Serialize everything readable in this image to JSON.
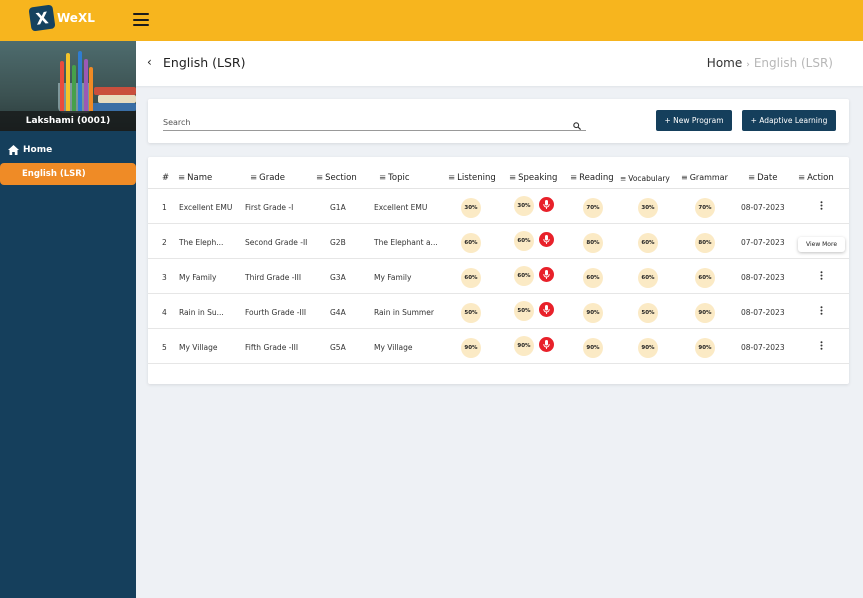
{
  "app": {
    "logo_text": "WeXL",
    "logo_mark": "X",
    "brand_color": "#f7b51e",
    "sidebar_color": "#153f5c",
    "accent_color": "#ef8b26"
  },
  "sidebar": {
    "profile_name": "Lakshami (0001)",
    "home_label": "Home",
    "active_label": "English (LSR)"
  },
  "header": {
    "back_icon": "chevron-left-icon",
    "title": "English (LSR)",
    "breadcrumb_home": "Home",
    "breadcrumb_sep": "›",
    "breadcrumb_current": "English (LSR)"
  },
  "search": {
    "placeholder": "Search",
    "value": ""
  },
  "buttons": {
    "new_program": "+ New Program",
    "adaptive_learning": "+ Adaptive Learning"
  },
  "table": {
    "columns": {
      "num": "#",
      "name": "Name",
      "grade": "Grade",
      "section": "Section",
      "topic": "Topic",
      "listening": "Listening",
      "speaking": "Speaking",
      "reading": "Reading",
      "vocabulary": "Vocabulary",
      "grammar": "Grammar",
      "date": "Date",
      "action": "Action"
    },
    "sort_glyph": "≡",
    "rows": [
      {
        "num": "1",
        "name": "Excellent EMU",
        "grade": "First Grade -I",
        "section": "G1A",
        "topic": "Excellent EMU",
        "listening": "30%",
        "speaking": "30%",
        "reading": "70%",
        "vocabulary": "30%",
        "grammar": "70%",
        "date": "08-07-2023"
      },
      {
        "num": "2",
        "name": "The Eleph...",
        "grade": "Second Grade -II",
        "section": "G2B",
        "topic": "The Elephant a...",
        "listening": "60%",
        "speaking": "60%",
        "reading": "80%",
        "vocabulary": "60%",
        "grammar": "80%",
        "date": "07-07-2023"
      },
      {
        "num": "3",
        "name": "My Family",
        "grade": "Third Grade -III",
        "section": "G3A",
        "topic": "My Family",
        "listening": "60%",
        "speaking": "60%",
        "reading": "60%",
        "vocabulary": "60%",
        "grammar": "60%",
        "date": "08-07-2023"
      },
      {
        "num": "4",
        "name": "Rain in Su...",
        "grade": "Fourth Grade -III",
        "section": "G4A",
        "topic": "Rain in Summer",
        "listening": "50%",
        "speaking": "50%",
        "reading": "90%",
        "vocabulary": "50%",
        "grammar": "90%",
        "date": "08-07-2023"
      },
      {
        "num": "5",
        "name": "My Village",
        "grade": "Fifth Grade -III",
        "section": "G5A",
        "topic": "My Village",
        "listening": "90%",
        "speaking": "90%",
        "reading": "90%",
        "vocabulary": "90%",
        "grammar": "90%",
        "date": "08-07-2023"
      }
    ]
  },
  "tooltip": {
    "text": "View More"
  }
}
